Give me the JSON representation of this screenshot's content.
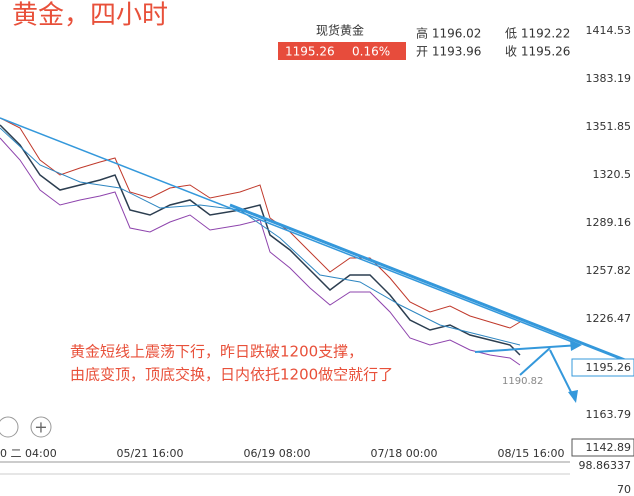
{
  "header": {
    "title": "黄金，四小时"
  },
  "quote": {
    "name": "现货黄金",
    "price": "1195.26",
    "change": "0.16%",
    "high": "高 1196.02",
    "low": "低 1192.22",
    "open": "开 1193.96",
    "close": "收 1195.26"
  },
  "y_axis": [
    "1414.53",
    "1383.19",
    "1351.85",
    "1320.5",
    "1289.16",
    "1257.82",
    "1226.47",
    "1163.79"
  ],
  "current_price": "1195.26",
  "cursor_price": "1142.89",
  "indicator_labels": [
    "98.86337",
    "70"
  ],
  "x_axis": [
    "0 二 04:00",
    "05/21 16:00",
    "06/19 08:00",
    "07/18 00:00",
    "08/15 16:00"
  ],
  "annotation": [
    "黄金短线上震荡下行，昨日跌破1200支撑，",
    "由底变顶，顶底交换，日内依托1200做空就行了"
  ],
  "low_label": "1190.82"
}
